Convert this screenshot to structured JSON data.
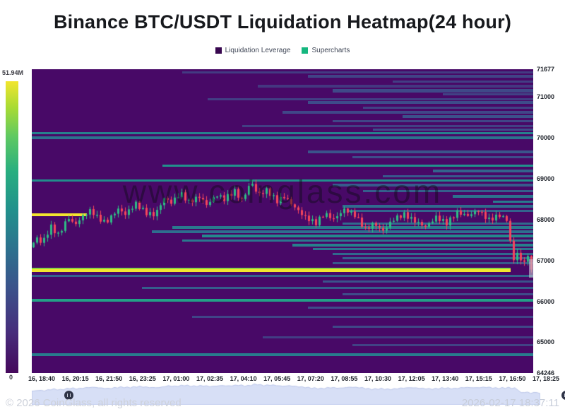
{
  "title": "Binance BTC/USDT Liquidation Heatmap(24 hour)",
  "legend": {
    "items": [
      {
        "label": "Liquidation Leverage",
        "color": "#38074f"
      },
      {
        "label": "Supercharts",
        "color": "#15b77f"
      }
    ]
  },
  "colorbar": {
    "max_label": "51.94M",
    "min_label": "0"
  },
  "watermark": "www.coinglass.com",
  "footer": {
    "copyright": "© 2026 CoinGlass, all rights reserved",
    "timestamp": "2026-02-17 18:37:11"
  },
  "chart_data": {
    "type": "heatmap",
    "title": "Binance BTC/USDT Liquidation Heatmap(24 hour)",
    "legend_entries": [
      "Liquidation Leverage",
      "Supercharts"
    ],
    "colorbar_scale": {
      "min": 0,
      "max": "51.94M"
    },
    "y_axis": {
      "min": 64246,
      "max": 71677,
      "ticks": [
        71677,
        71000,
        70000,
        69000,
        68000,
        67000,
        66000,
        65000,
        64246
      ]
    },
    "x_axis": {
      "ticks": [
        "16, 18:40",
        "16, 20:15",
        "16, 21:50",
        "16, 23:25",
        "17, 01:00",
        "17, 02:35",
        "17, 04:10",
        "17, 05:45",
        "17, 07:20",
        "17, 08:55",
        "17, 10:30",
        "17, 12:05",
        "17, 13:40",
        "17, 15:15",
        "17, 16:50",
        "17, 18:25"
      ]
    },
    "colors": {
      "background": "#480967",
      "candle_up": "#2ebd85",
      "candle_down": "#f5455c",
      "max_band_yellow": "#f2e52e"
    },
    "heatmap_bands_format": "[price, x_start_frac, x_end_frac, intensity_0to1, thickness_px]",
    "heatmap_bands": [
      [
        70120,
        0,
        1,
        0.62,
        3
      ],
      [
        70000,
        0,
        1,
        0.55,
        4
      ],
      [
        68950,
        0,
        1,
        0.68,
        3
      ],
      [
        66620,
        0,
        1,
        0.45,
        3
      ],
      [
        66020,
        0,
        1,
        0.75,
        4
      ],
      [
        64690,
        0,
        1,
        0.6,
        4
      ],
      [
        68120,
        0,
        0.11,
        1.0,
        4
      ],
      [
        66800,
        0,
        0.955,
        0.9,
        2
      ],
      [
        66760,
        0,
        0.955,
        1.0,
        4
      ],
      [
        69320,
        0.26,
        1,
        0.7,
        3
      ],
      [
        71600,
        0.3,
        1,
        0.2,
        3
      ],
      [
        71500,
        0.55,
        1,
        0.25,
        4
      ],
      [
        71380,
        0.72,
        1,
        0.22,
        3
      ],
      [
        71260,
        0.45,
        1,
        0.18,
        4
      ],
      [
        71150,
        0.6,
        1,
        0.28,
        5
      ],
      [
        71060,
        0.82,
        1,
        0.24,
        3
      ],
      [
        70950,
        0.35,
        1,
        0.22,
        3
      ],
      [
        70860,
        0.55,
        1,
        0.3,
        4
      ],
      [
        70740,
        0.66,
        1,
        0.24,
        3
      ],
      [
        70620,
        0.5,
        1,
        0.27,
        4
      ],
      [
        70520,
        0.74,
        1,
        0.33,
        4
      ],
      [
        70400,
        0.6,
        1,
        0.26,
        3
      ],
      [
        70280,
        0.42,
        1,
        0.23,
        3
      ],
      [
        70200,
        0.68,
        1,
        0.3,
        3
      ],
      [
        69650,
        0.55,
        1,
        0.35,
        4
      ],
      [
        69520,
        0.64,
        1,
        0.3,
        3
      ],
      [
        69180,
        0.8,
        1,
        0.45,
        4
      ],
      [
        69060,
        0.7,
        1,
        0.38,
        3
      ],
      [
        68850,
        0.6,
        1,
        0.4,
        4
      ],
      [
        68700,
        0.66,
        1,
        0.42,
        3
      ],
      [
        68560,
        0.84,
        1,
        0.55,
        4
      ],
      [
        68440,
        0.92,
        1,
        0.6,
        3
      ],
      [
        68320,
        0.62,
        1,
        0.5,
        4
      ],
      [
        68210,
        0.63,
        1,
        0.45,
        3
      ],
      [
        67900,
        0.62,
        1,
        0.5,
        3
      ],
      [
        67800,
        0.28,
        1,
        0.58,
        4
      ],
      [
        67700,
        0.24,
        1,
        0.52,
        4
      ],
      [
        67590,
        0.34,
        1,
        0.66,
        4
      ],
      [
        67480,
        0.3,
        1,
        0.58,
        3
      ],
      [
        67380,
        0.52,
        1,
        0.62,
        4
      ],
      [
        67280,
        0.56,
        1,
        0.55,
        3
      ],
      [
        67160,
        0.6,
        1,
        0.48,
        3
      ],
      [
        67050,
        0.62,
        1,
        0.42,
        3
      ],
      [
        66930,
        0.6,
        1,
        0.38,
        3
      ],
      [
        66480,
        0.58,
        1,
        0.35,
        3
      ],
      [
        66320,
        0.22,
        1,
        0.42,
        3
      ],
      [
        66180,
        0.62,
        1,
        0.3,
        3
      ],
      [
        65850,
        0.55,
        1,
        0.3,
        3
      ],
      [
        65620,
        0.32,
        1,
        0.26,
        3
      ],
      [
        65380,
        0.6,
        1,
        0.28,
        3
      ],
      [
        65120,
        0.46,
        1,
        0.22,
        3
      ],
      [
        64920,
        0.64,
        1,
        0.24,
        3
      ]
    ],
    "price_keypoints_format": "[x_frac, price]",
    "price_keypoints": [
      [
        0,
        67320
      ],
      [
        0.014,
        67550
      ],
      [
        0.024,
        67420
      ],
      [
        0.042,
        67830
      ],
      [
        0.056,
        67620
      ],
      [
        0.077,
        68050
      ],
      [
        0.089,
        67860
      ],
      [
        0.108,
        68120
      ],
      [
        0.122,
        68230
      ],
      [
        0.134,
        68060
      ],
      [
        0.151,
        67920
      ],
      [
        0.176,
        68260
      ],
      [
        0.19,
        68130
      ],
      [
        0.211,
        68390
      ],
      [
        0.232,
        68160
      ],
      [
        0.249,
        68110
      ],
      [
        0.268,
        68530
      ],
      [
        0.282,
        68410
      ],
      [
        0.3,
        68650
      ],
      [
        0.317,
        68430
      ],
      [
        0.338,
        68560
      ],
      [
        0.352,
        68360
      ],
      [
        0.373,
        68600
      ],
      [
        0.387,
        68500
      ],
      [
        0.408,
        68700
      ],
      [
        0.423,
        68460
      ],
      [
        0.441,
        68930
      ],
      [
        0.455,
        68600
      ],
      [
        0.472,
        68720
      ],
      [
        0.493,
        68450
      ],
      [
        0.507,
        68560
      ],
      [
        0.528,
        68300
      ],
      [
        0.549,
        68060
      ],
      [
        0.57,
        67910
      ],
      [
        0.587,
        68150
      ],
      [
        0.606,
        68010
      ],
      [
        0.627,
        68250
      ],
      [
        0.648,
        68110
      ],
      [
        0.669,
        67760
      ],
      [
        0.686,
        67910
      ],
      [
        0.704,
        67720
      ],
      [
        0.725,
        68010
      ],
      [
        0.746,
        68130
      ],
      [
        0.768,
        67960
      ],
      [
        0.789,
        67820
      ],
      [
        0.81,
        68060
      ],
      [
        0.831,
        67910
      ],
      [
        0.852,
        68180
      ],
      [
        0.873,
        68090
      ],
      [
        0.894,
        68230
      ],
      [
        0.915,
        67990
      ],
      [
        0.937,
        68110
      ],
      [
        0.954,
        67960
      ],
      [
        0.962,
        66920
      ],
      [
        0.972,
        67210
      ],
      [
        0.982,
        66860
      ],
      [
        0.99,
        67160
      ],
      [
        1,
        66830
      ]
    ],
    "last_candle_highlight": {
      "top_price": 67020,
      "bottom_price": 66580
    }
  }
}
